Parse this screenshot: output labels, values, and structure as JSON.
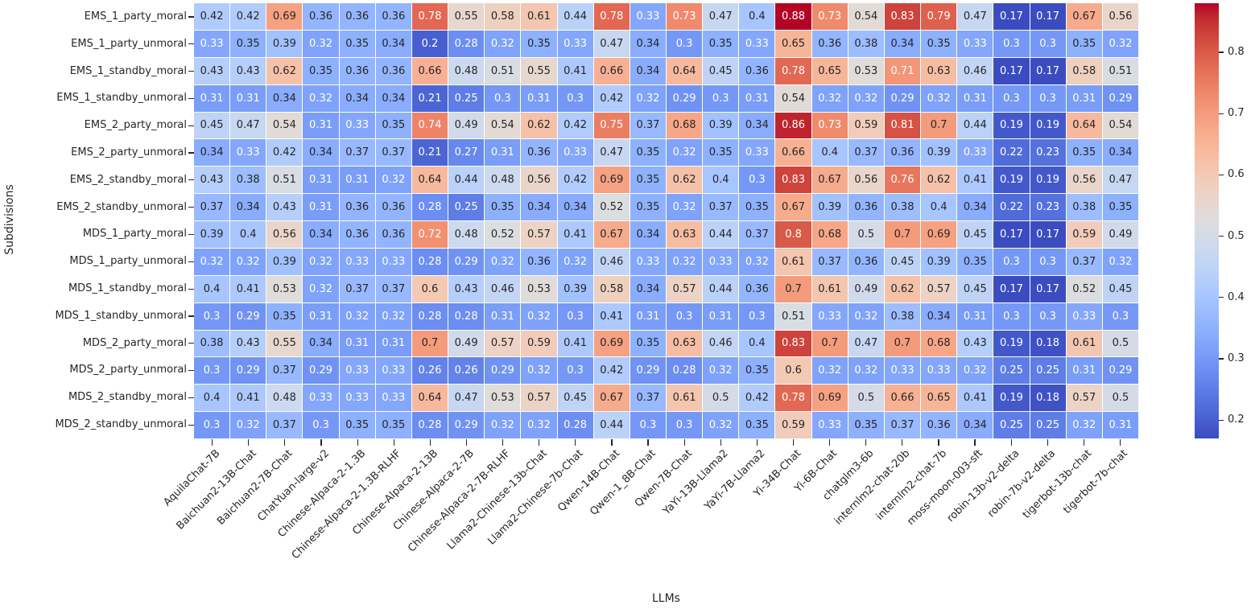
{
  "chart_data": {
    "type": "heatmap",
    "title": "",
    "xlabel": "LLMs",
    "ylabel": "Subdivisions",
    "colormap": "coolwarm",
    "vmin": 0.17,
    "vmax": 0.88,
    "legend_position": "right-colorbar",
    "grid": false,
    "colorbar_ticks": [
      0.8,
      0.7,
      0.6,
      0.5,
      0.4,
      0.3,
      0.2
    ],
    "annot_text_dark": "#262626",
    "annot_text_light": "#ffffff",
    "white_text_rule": {
      "low_max": 0.33,
      "high_min": 0.71
    },
    "colormap_rgb": [
      [
        59,
        76,
        192
      ],
      [
        68,
        90,
        204
      ],
      [
        77,
        104,
        215
      ],
      [
        87,
        117,
        225
      ],
      [
        98,
        130,
        234
      ],
      [
        108,
        142,
        241
      ],
      [
        119,
        154,
        247
      ],
      [
        130,
        165,
        251
      ],
      [
        141,
        176,
        254
      ],
      [
        152,
        185,
        255
      ],
      [
        163,
        194,
        255
      ],
      [
        174,
        201,
        253
      ],
      [
        184,
        208,
        249
      ],
      [
        194,
        213,
        244
      ],
      [
        204,
        217,
        238
      ],
      [
        213,
        219,
        230
      ],
      [
        221,
        221,
        221
      ],
      [
        229,
        216,
        209
      ],
      [
        236,
        211,
        197
      ],
      [
        241,
        204,
        185
      ],
      [
        245,
        196,
        173
      ],
      [
        247,
        187,
        160
      ],
      [
        247,
        177,
        148
      ],
      [
        247,
        166,
        135
      ],
      [
        244,
        154,
        123
      ],
      [
        241,
        141,
        111
      ],
      [
        236,
        127,
        99
      ],
      [
        229,
        112,
        88
      ],
      [
        222,
        96,
        77
      ],
      [
        213,
        80,
        66
      ],
      [
        203,
        62,
        56
      ],
      [
        192,
        40,
        47
      ],
      [
        180,
        4,
        38
      ]
    ],
    "x_categories": [
      "AquilaChat-7B",
      "Baichuan2-13B-Chat",
      "Baichuan2-7B-Chat",
      "ChatYuan-large-v2",
      "Chinese-Alpaca-2-1.3B",
      "Chinese-Alpaca-2-1.3B-RLHF",
      "Chinese-Alpaca-2-13B",
      "Chinese-Alpaca-2-7B",
      "Chinese-Alpaca-2-7B-RLHF",
      "Llama2-Chinese-13b-Chat",
      "Llama2-Chinese-7b-Chat",
      "Qwen-14B-Chat",
      "Qwen-1_8B-Chat",
      "Qwen-7B-Chat",
      "YaYi-13B-Llama2",
      "YaYi-7B-Llama2",
      "Yi-34B-Chat",
      "Yi-6B-Chat",
      "chatglm3-6b",
      "internlm2-chat-20b",
      "internlm2-chat-7b",
      "moss-moon-003-sft",
      "robin-13b-v2-delta",
      "robin-7b-v2-delta",
      "tigerbot-13b-chat",
      "tigerbot-7b-chat"
    ],
    "y_categories": [
      "EMS_1_party_moral",
      "EMS_1_party_unmoral",
      "EMS_1_standby_moral",
      "EMS_1_standby_unmoral",
      "EMS_2_party_moral",
      "EMS_2_party_unmoral",
      "EMS_2_standby_moral",
      "EMS_2_standby_unmoral",
      "MDS_1_party_moral",
      "MDS_1_party_unmoral",
      "MDS_1_standby_moral",
      "MDS_1_standby_unmoral",
      "MDS_2_party_moral",
      "MDS_2_party_unmoral",
      "MDS_2_standby_moral",
      "MDS_2_standby_unmoral"
    ],
    "values": [
      [
        0.42,
        0.42,
        0.69,
        0.36,
        0.36,
        0.36,
        0.78,
        0.55,
        0.58,
        0.61,
        0.44,
        0.78,
        0.33,
        0.73,
        0.47,
        0.4,
        0.88,
        0.73,
        0.54,
        0.83,
        0.79,
        0.47,
        0.17,
        0.17,
        0.67,
        0.56
      ],
      [
        0.33,
        0.35,
        0.39,
        0.32,
        0.35,
        0.34,
        0.2,
        0.28,
        0.32,
        0.35,
        0.33,
        0.47,
        0.34,
        0.3,
        0.35,
        0.33,
        0.65,
        0.36,
        0.38,
        0.34,
        0.35,
        0.33,
        0.3,
        0.3,
        0.35,
        0.32
      ],
      [
        0.43,
        0.43,
        0.62,
        0.35,
        0.36,
        0.36,
        0.66,
        0.48,
        0.51,
        0.55,
        0.41,
        0.66,
        0.34,
        0.64,
        0.45,
        0.36,
        0.78,
        0.65,
        0.53,
        0.71,
        0.63,
        0.46,
        0.17,
        0.17,
        0.58,
        0.51
      ],
      [
        0.31,
        0.31,
        0.34,
        0.32,
        0.34,
        0.34,
        0.21,
        0.25,
        0.3,
        0.31,
        0.3,
        0.42,
        0.32,
        0.29,
        0.3,
        0.31,
        0.54,
        0.32,
        0.32,
        0.29,
        0.32,
        0.31,
        0.3,
        0.3,
        0.31,
        0.29
      ],
      [
        0.45,
        0.47,
        0.54,
        0.31,
        0.33,
        0.35,
        0.74,
        0.49,
        0.54,
        0.62,
        0.42,
        0.75,
        0.37,
        0.68,
        0.39,
        0.34,
        0.86,
        0.73,
        0.59,
        0.81,
        0.7,
        0.44,
        0.19,
        0.19,
        0.64,
        0.54
      ],
      [
        0.34,
        0.33,
        0.42,
        0.34,
        0.37,
        0.37,
        0.21,
        0.27,
        0.31,
        0.36,
        0.33,
        0.47,
        0.35,
        0.32,
        0.35,
        0.33,
        0.66,
        0.4,
        0.37,
        0.36,
        0.39,
        0.33,
        0.22,
        0.23,
        0.35,
        0.34
      ],
      [
        0.43,
        0.38,
        0.51,
        0.31,
        0.31,
        0.32,
        0.64,
        0.44,
        0.48,
        0.56,
        0.42,
        0.69,
        0.35,
        0.62,
        0.4,
        0.3,
        0.83,
        0.67,
        0.56,
        0.76,
        0.62,
        0.41,
        0.19,
        0.19,
        0.56,
        0.47
      ],
      [
        0.37,
        0.34,
        0.43,
        0.31,
        0.36,
        0.36,
        0.28,
        0.25,
        0.35,
        0.34,
        0.34,
        0.52,
        0.35,
        0.32,
        0.37,
        0.35,
        0.67,
        0.39,
        0.36,
        0.38,
        0.4,
        0.34,
        0.22,
        0.23,
        0.38,
        0.35
      ],
      [
        0.39,
        0.4,
        0.56,
        0.34,
        0.36,
        0.36,
        0.72,
        0.48,
        0.52,
        0.57,
        0.41,
        0.67,
        0.34,
        0.63,
        0.44,
        0.37,
        0.8,
        0.68,
        0.5,
        0.7,
        0.69,
        0.45,
        0.17,
        0.17,
        0.59,
        0.49
      ],
      [
        0.32,
        0.32,
        0.39,
        0.32,
        0.33,
        0.33,
        0.28,
        0.29,
        0.32,
        0.36,
        0.32,
        0.46,
        0.33,
        0.32,
        0.33,
        0.32,
        0.61,
        0.37,
        0.36,
        0.45,
        0.39,
        0.35,
        0.3,
        0.3,
        0.37,
        0.32
      ],
      [
        0.4,
        0.41,
        0.53,
        0.32,
        0.37,
        0.37,
        0.6,
        0.43,
        0.46,
        0.53,
        0.39,
        0.58,
        0.34,
        0.57,
        0.44,
        0.36,
        0.7,
        0.61,
        0.49,
        0.62,
        0.57,
        0.45,
        0.17,
        0.17,
        0.52,
        0.45
      ],
      [
        0.3,
        0.29,
        0.35,
        0.31,
        0.32,
        0.32,
        0.28,
        0.28,
        0.31,
        0.32,
        0.3,
        0.41,
        0.31,
        0.3,
        0.31,
        0.3,
        0.51,
        0.33,
        0.32,
        0.38,
        0.34,
        0.31,
        0.3,
        0.3,
        0.33,
        0.3
      ],
      [
        0.38,
        0.43,
        0.55,
        0.34,
        0.31,
        0.31,
        0.7,
        0.49,
        0.57,
        0.59,
        0.41,
        0.69,
        0.35,
        0.63,
        0.46,
        0.4,
        0.83,
        0.7,
        0.47,
        0.7,
        0.68,
        0.43,
        0.19,
        0.18,
        0.61,
        0.5
      ],
      [
        0.3,
        0.29,
        0.37,
        0.29,
        0.33,
        0.33,
        0.26,
        0.26,
        0.29,
        0.32,
        0.3,
        0.42,
        0.29,
        0.28,
        0.32,
        0.35,
        0.6,
        0.32,
        0.32,
        0.33,
        0.33,
        0.32,
        0.25,
        0.25,
        0.31,
        0.29
      ],
      [
        0.4,
        0.41,
        0.48,
        0.33,
        0.33,
        0.33,
        0.64,
        0.47,
        0.53,
        0.57,
        0.45,
        0.67,
        0.37,
        0.61,
        0.5,
        0.42,
        0.78,
        0.69,
        0.5,
        0.66,
        0.65,
        0.41,
        0.19,
        0.18,
        0.57,
        0.5
      ],
      [
        0.3,
        0.32,
        0.37,
        0.3,
        0.35,
        0.35,
        0.28,
        0.29,
        0.32,
        0.32,
        0.28,
        0.44,
        0.3,
        0.3,
        0.32,
        0.35,
        0.59,
        0.33,
        0.35,
        0.37,
        0.36,
        0.34,
        0.25,
        0.25,
        0.32,
        0.31
      ]
    ]
  }
}
